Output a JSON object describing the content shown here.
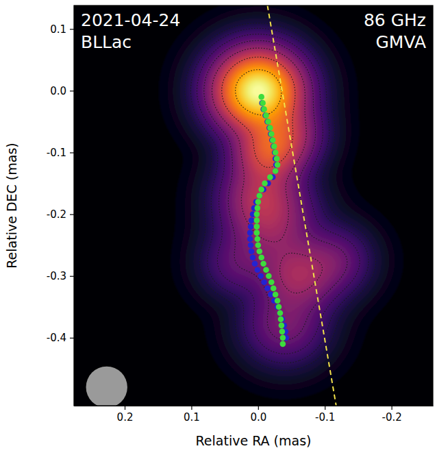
{
  "chart_data": {
    "type": "image",
    "annotations": [
      "2021-04-24",
      "BLLac",
      "86 GHz",
      "GMVA"
    ],
    "x_label": "Relative RA (mas)",
    "y_label": "Relative DEC (mas)",
    "xlim": [
      0.276,
      -0.262
    ],
    "ylim": [
      -0.51,
      0.138
    ],
    "xticks": [
      0.2,
      0.1,
      {
        "value": 0,
        "label": "0.0"
      },
      -0.1,
      -0.2
    ],
    "yticks": [
      0.1,
      {
        "value": 0,
        "label": "0.0"
      },
      -0.1,
      -0.2,
      -0.3,
      -0.4
    ],
    "components": [
      {
        "x": 0.0,
        "y": 0.0,
        "flux": 1.0,
        "size": 0.085
      },
      {
        "x": -0.04,
        "y": -0.07,
        "flux": 0.2,
        "size": 0.07
      },
      {
        "x": -0.015,
        "y": -0.1,
        "flux": 0.3,
        "size": 0.07
      },
      {
        "x": -0.005,
        "y": -0.17,
        "flux": 0.18,
        "size": 0.08
      },
      {
        "x": -0.02,
        "y": -0.22,
        "flux": 0.14,
        "size": 0.09
      },
      {
        "x": 0.03,
        "y": -0.28,
        "flux": 0.06,
        "size": 0.07
      },
      {
        "x": -0.06,
        "y": -0.3,
        "flux": 0.18,
        "size": 0.08
      },
      {
        "x": -0.115,
        "y": -0.275,
        "flux": 0.08,
        "size": 0.07
      },
      {
        "x": -0.04,
        "y": -0.38,
        "flux": 0.1,
        "size": 0.08
      }
    ],
    "contour_levels": [
      0.01,
      0.02,
      0.04,
      0.08,
      0.16,
      0.32,
      0.64
    ],
    "beam": {
      "x": 0.227,
      "y": -0.48,
      "size": 0.062
    },
    "series": [
      {
        "type": "scatter",
        "marker": "circle",
        "color": "#2323d2",
        "x": [
          -0.006,
          -0.008,
          -0.011,
          -0.014,
          -0.017,
          -0.019,
          -0.021,
          -0.023,
          -0.025,
          -0.026,
          -0.027,
          -0.026,
          -0.022,
          -0.015,
          -0.008,
          -0.002,
          0.003,
          0.006,
          0.008,
          0.01,
          0.011,
          0.012,
          0.012,
          0.011,
          0.01,
          0.008,
          0.005,
          0.001,
          -0.004,
          -0.009,
          -0.014,
          -0.019,
          -0.024,
          -0.029,
          -0.033,
          -0.036,
          -0.039,
          -0.041,
          -0.042
        ],
        "values": [
          -0.02,
          -0.03,
          -0.04,
          -0.05,
          -0.06,
          -0.07,
          -0.08,
          -0.09,
          -0.1,
          -0.11,
          -0.12,
          -0.13,
          -0.14,
          -0.15,
          -0.16,
          -0.17,
          -0.18,
          -0.19,
          -0.2,
          -0.21,
          -0.22,
          -0.23,
          -0.24,
          -0.25,
          -0.26,
          -0.27,
          -0.28,
          -0.29,
          -0.3,
          -0.31,
          -0.32,
          -0.33,
          -0.34,
          -0.35,
          -0.36,
          -0.37,
          -0.38,
          -0.39,
          -0.4
        ]
      },
      {
        "type": "scatter",
        "marker": "circle",
        "color": "#3ddc3d",
        "x": [
          -0.005,
          -0.007,
          -0.009,
          -0.012,
          -0.015,
          -0.018,
          -0.02,
          -0.022,
          -0.024,
          -0.026,
          -0.028,
          -0.029,
          -0.026,
          -0.018,
          -0.01,
          -0.005,
          -0.002,
          0,
          0.001,
          0.002,
          0.002,
          0.002,
          0.002,
          0.001,
          0,
          -0.002,
          -0.005,
          -0.008,
          -0.012,
          -0.016,
          -0.02,
          -0.023,
          -0.026,
          -0.029,
          -0.031,
          -0.033,
          -0.034,
          -0.035,
          -0.036,
          -0.037,
          -0.037
        ],
        "values": [
          -0.01,
          -0.02,
          -0.03,
          -0.04,
          -0.05,
          -0.06,
          -0.07,
          -0.08,
          -0.09,
          -0.1,
          -0.11,
          -0.12,
          -0.13,
          -0.14,
          -0.15,
          -0.16,
          -0.17,
          -0.18,
          -0.19,
          -0.2,
          -0.21,
          -0.22,
          -0.23,
          -0.24,
          -0.25,
          -0.26,
          -0.27,
          -0.28,
          -0.29,
          -0.3,
          -0.31,
          -0.32,
          -0.33,
          -0.34,
          -0.35,
          -0.36,
          -0.37,
          -0.38,
          -0.39,
          -0.4,
          -0.41
        ]
      },
      {
        "type": "line",
        "line_style": "dashed",
        "color": "#f2e24a",
        "x": [
          -0.014,
          -0.117
        ],
        "values": [
          0.138,
          -0.51
        ]
      }
    ]
  }
}
